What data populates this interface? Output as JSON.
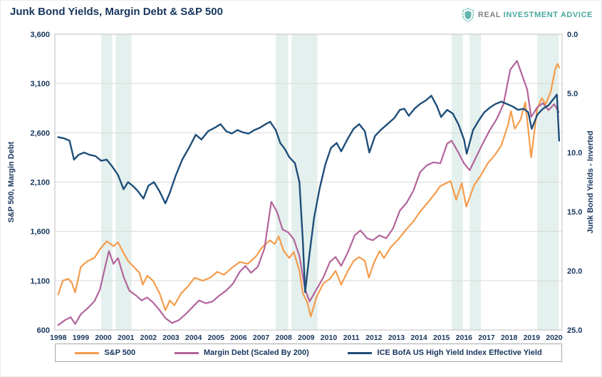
{
  "header": {
    "title": "Junk Bond Yields, Margin Debt & S&P 500",
    "logo": {
      "word1": "REAL",
      "word2": "INVESTMENT",
      "word3": "ADVICE"
    }
  },
  "chart_data": {
    "type": "line",
    "title": "Junk Bond Yields, Margin Debt & S&P 500",
    "x_axis": {
      "min": 1997.85,
      "max": 2020.35,
      "tick_labels": [
        "1998",
        "1999",
        "2000",
        "2001",
        "2002",
        "2003",
        "2004",
        "2005",
        "2006",
        "2007",
        "2008",
        "2009",
        "2010",
        "2011",
        "2012",
        "2013",
        "2014",
        "2015",
        "2016",
        "2017",
        "2018",
        "2019",
        "2020"
      ]
    },
    "left_axis": {
      "label": "S&P 500, Margin Debt",
      "min": 600,
      "max": 3600,
      "step": 500,
      "ticks": [
        "600",
        "1,100",
        "1,600",
        "2,100",
        "2,600",
        "3,100",
        "3,600"
      ]
    },
    "right_axis": {
      "label": "Junk Bond Yields - Inverted",
      "min": 0,
      "max": 25,
      "step": 5,
      "inverted": true,
      "ticks": [
        "0.0",
        "5.0",
        "10.0",
        "15.0",
        "20.0",
        "25.0"
      ]
    },
    "shaded_bands": [
      {
        "from": 1999.9,
        "to": 2000.4
      },
      {
        "from": 2000.55,
        "to": 2001.25
      },
      {
        "from": 2007.65,
        "to": 2008.2
      },
      {
        "from": 2008.35,
        "to": 2009.5
      },
      {
        "from": 2015.45,
        "to": 2015.95
      },
      {
        "from": 2016.25,
        "to": 2016.75
      },
      {
        "from": 2019.25,
        "to": 2020.2
      }
    ],
    "colors": {
      "grid": "#D9D9D9",
      "band": "#E4F0ED",
      "border": "#BFBFBF",
      "axis_text": "#17365D"
    },
    "series": [
      {
        "name": "S&P 500",
        "color": "#F49C4C",
        "axis": "left",
        "points": [
          [
            1998,
            960
          ],
          [
            1998.2,
            1100
          ],
          [
            1998.45,
            1120
          ],
          [
            1998.6,
            1080
          ],
          [
            1998.75,
            980
          ],
          [
            1999,
            1240
          ],
          [
            1999.3,
            1300
          ],
          [
            1999.6,
            1330
          ],
          [
            1999.85,
            1420
          ],
          [
            2000.15,
            1500
          ],
          [
            2000.45,
            1450
          ],
          [
            2000.65,
            1490
          ],
          [
            2000.9,
            1380
          ],
          [
            2001.1,
            1300
          ],
          [
            2001.35,
            1240
          ],
          [
            2001.6,
            1180
          ],
          [
            2001.75,
            1060
          ],
          [
            2001.95,
            1150
          ],
          [
            2002.2,
            1100
          ],
          [
            2002.5,
            970
          ],
          [
            2002.75,
            800
          ],
          [
            2002.95,
            900
          ],
          [
            2003.15,
            850
          ],
          [
            2003.45,
            970
          ],
          [
            2003.75,
            1040
          ],
          [
            2004.05,
            1130
          ],
          [
            2004.4,
            1100
          ],
          [
            2004.75,
            1130
          ],
          [
            2005.05,
            1190
          ],
          [
            2005.35,
            1160
          ],
          [
            2005.7,
            1230
          ],
          [
            2006.05,
            1290
          ],
          [
            2006.4,
            1270
          ],
          [
            2006.75,
            1340
          ],
          [
            2007.05,
            1440
          ],
          [
            2007.4,
            1510
          ],
          [
            2007.6,
            1470
          ],
          [
            2007.78,
            1550
          ],
          [
            2008,
            1400
          ],
          [
            2008.25,
            1330
          ],
          [
            2008.45,
            1390
          ],
          [
            2008.7,
            1200
          ],
          [
            2008.85,
            970
          ],
          [
            2009.05,
            880
          ],
          [
            2009.2,
            735
          ],
          [
            2009.45,
            930
          ],
          [
            2009.75,
            1070
          ],
          [
            2010.05,
            1120
          ],
          [
            2010.3,
            1200
          ],
          [
            2010.55,
            1060
          ],
          [
            2010.85,
            1200
          ],
          [
            2011.1,
            1300
          ],
          [
            2011.35,
            1340
          ],
          [
            2011.6,
            1300
          ],
          [
            2011.78,
            1130
          ],
          [
            2012,
            1280
          ],
          [
            2012.25,
            1400
          ],
          [
            2012.45,
            1330
          ],
          [
            2012.75,
            1440
          ],
          [
            2013.05,
            1510
          ],
          [
            2013.4,
            1610
          ],
          [
            2013.75,
            1700
          ],
          [
            2014.05,
            1800
          ],
          [
            2014.35,
            1880
          ],
          [
            2014.7,
            1980
          ],
          [
            2014.95,
            2060
          ],
          [
            2015.4,
            2110
          ],
          [
            2015.65,
            1920
          ],
          [
            2015.9,
            2090
          ],
          [
            2016.1,
            1850
          ],
          [
            2016.45,
            2070
          ],
          [
            2016.75,
            2170
          ],
          [
            2017.05,
            2290
          ],
          [
            2017.35,
            2370
          ],
          [
            2017.65,
            2470
          ],
          [
            2017.95,
            2680
          ],
          [
            2018.08,
            2820
          ],
          [
            2018.25,
            2640
          ],
          [
            2018.5,
            2730
          ],
          [
            2018.72,
            2910
          ],
          [
            2018.98,
            2350
          ],
          [
            2019.25,
            2850
          ],
          [
            2019.45,
            2950
          ],
          [
            2019.62,
            2890
          ],
          [
            2019.85,
            3020
          ],
          [
            2020.05,
            3250
          ],
          [
            2020.15,
            3300
          ],
          [
            2020.22,
            3260
          ]
        ]
      },
      {
        "name": "Margin Debt (Scaled By 200)",
        "color": "#B2649B",
        "axis": "left",
        "points": [
          [
            1998,
            650
          ],
          [
            1998.3,
            700
          ],
          [
            1998.55,
            730
          ],
          [
            1998.75,
            660
          ],
          [
            1999,
            760
          ],
          [
            1999.3,
            820
          ],
          [
            1999.6,
            890
          ],
          [
            1999.85,
            1010
          ],
          [
            2000.1,
            1260
          ],
          [
            2000.25,
            1400
          ],
          [
            2000.45,
            1270
          ],
          [
            2000.65,
            1330
          ],
          [
            2000.9,
            1140
          ],
          [
            2001.15,
            1000
          ],
          [
            2001.45,
            950
          ],
          [
            2001.7,
            900
          ],
          [
            2001.95,
            930
          ],
          [
            2002.2,
            880
          ],
          [
            2002.5,
            800
          ],
          [
            2002.75,
            720
          ],
          [
            2003.05,
            670
          ],
          [
            2003.35,
            700
          ],
          [
            2003.65,
            760
          ],
          [
            2003.95,
            830
          ],
          [
            2004.25,
            900
          ],
          [
            2004.55,
            870
          ],
          [
            2004.85,
            890
          ],
          [
            2005.15,
            950
          ],
          [
            2005.45,
            1000
          ],
          [
            2005.75,
            1070
          ],
          [
            2006.05,
            1190
          ],
          [
            2006.3,
            1250
          ],
          [
            2006.55,
            1180
          ],
          [
            2006.85,
            1240
          ],
          [
            2007.15,
            1430
          ],
          [
            2007.45,
            1900
          ],
          [
            2007.7,
            1800
          ],
          [
            2007.95,
            1620
          ],
          [
            2008.2,
            1590
          ],
          [
            2008.45,
            1520
          ],
          [
            2008.7,
            1350
          ],
          [
            2008.95,
            1010
          ],
          [
            2009.15,
            890
          ],
          [
            2009.45,
            1010
          ],
          [
            2009.75,
            1130
          ],
          [
            2010.05,
            1290
          ],
          [
            2010.3,
            1340
          ],
          [
            2010.55,
            1250
          ],
          [
            2010.85,
            1390
          ],
          [
            2011.15,
            1560
          ],
          [
            2011.4,
            1610
          ],
          [
            2011.7,
            1530
          ],
          [
            2011.95,
            1510
          ],
          [
            2012.25,
            1560
          ],
          [
            2012.55,
            1530
          ],
          [
            2012.85,
            1630
          ],
          [
            2013.15,
            1810
          ],
          [
            2013.45,
            1890
          ],
          [
            2013.75,
            2010
          ],
          [
            2014.05,
            2200
          ],
          [
            2014.35,
            2270
          ],
          [
            2014.65,
            2300
          ],
          [
            2014.95,
            2290
          ],
          [
            2015.25,
            2490
          ],
          [
            2015.45,
            2520
          ],
          [
            2015.75,
            2400
          ],
          [
            2016,
            2290
          ],
          [
            2016.25,
            2220
          ],
          [
            2016.55,
            2360
          ],
          [
            2016.85,
            2500
          ],
          [
            2017.15,
            2630
          ],
          [
            2017.45,
            2740
          ],
          [
            2017.75,
            2890
          ],
          [
            2018.05,
            3240
          ],
          [
            2018.35,
            3330
          ],
          [
            2018.6,
            3170
          ],
          [
            2018.8,
            3040
          ],
          [
            2018.98,
            2760
          ],
          [
            2019.25,
            2860
          ],
          [
            2019.5,
            2900
          ],
          [
            2019.75,
            2830
          ],
          [
            2020,
            2890
          ],
          [
            2020.2,
            2810
          ]
        ]
      },
      {
        "name": "ICE BofA US High Yield Index Effective Yield",
        "color": "#1F4E79",
        "axis": "right",
        "points": [
          [
            1998,
            8.7
          ],
          [
            1998.25,
            8.8
          ],
          [
            1998.5,
            9.0
          ],
          [
            1998.7,
            10.6
          ],
          [
            1998.9,
            10.2
          ],
          [
            1999.15,
            10.0
          ],
          [
            1999.4,
            10.2
          ],
          [
            1999.65,
            10.3
          ],
          [
            1999.9,
            10.7
          ],
          [
            2000.15,
            10.6
          ],
          [
            2000.4,
            11.2
          ],
          [
            2000.65,
            11.9
          ],
          [
            2000.9,
            13.1
          ],
          [
            2001.1,
            12.5
          ],
          [
            2001.35,
            12.9
          ],
          [
            2001.55,
            13.3
          ],
          [
            2001.78,
            13.9
          ],
          [
            2002,
            12.8
          ],
          [
            2002.25,
            12.5
          ],
          [
            2002.5,
            13.3
          ],
          [
            2002.75,
            14.3
          ],
          [
            2002.95,
            13.4
          ],
          [
            2003.2,
            12.0
          ],
          [
            2003.5,
            10.6
          ],
          [
            2003.8,
            9.6
          ],
          [
            2004.1,
            8.5
          ],
          [
            2004.35,
            8.9
          ],
          [
            2004.65,
            8.2
          ],
          [
            2004.95,
            7.9
          ],
          [
            2005.2,
            7.6
          ],
          [
            2005.45,
            8.2
          ],
          [
            2005.7,
            8.4
          ],
          [
            2005.95,
            8.1
          ],
          [
            2006.2,
            8.3
          ],
          [
            2006.45,
            8.4
          ],
          [
            2006.7,
            8.1
          ],
          [
            2006.95,
            7.9
          ],
          [
            2007.2,
            7.6
          ],
          [
            2007.4,
            7.4
          ],
          [
            2007.65,
            8.1
          ],
          [
            2007.85,
            9.2
          ],
          [
            2008.05,
            9.7
          ],
          [
            2008.25,
            10.4
          ],
          [
            2008.5,
            10.9
          ],
          [
            2008.7,
            12.5
          ],
          [
            2008.85,
            17.5
          ],
          [
            2008.95,
            21.8
          ],
          [
            2009.15,
            18.5
          ],
          [
            2009.35,
            15.5
          ],
          [
            2009.6,
            13.0
          ],
          [
            2009.85,
            11.0
          ],
          [
            2010.1,
            9.6
          ],
          [
            2010.35,
            9.2
          ],
          [
            2010.55,
            9.9
          ],
          [
            2010.85,
            8.8
          ],
          [
            2011.1,
            8.0
          ],
          [
            2011.35,
            7.6
          ],
          [
            2011.6,
            8.2
          ],
          [
            2011.8,
            10.0
          ],
          [
            2012.05,
            8.6
          ],
          [
            2012.3,
            8.1
          ],
          [
            2012.6,
            7.6
          ],
          [
            2012.9,
            7.1
          ],
          [
            2013.15,
            6.4
          ],
          [
            2013.35,
            6.3
          ],
          [
            2013.55,
            6.9
          ],
          [
            2013.8,
            6.3
          ],
          [
            2014.05,
            5.9
          ],
          [
            2014.3,
            5.6
          ],
          [
            2014.55,
            5.2
          ],
          [
            2014.8,
            6.1
          ],
          [
            2014.98,
            7.0
          ],
          [
            2015.25,
            6.4
          ],
          [
            2015.5,
            6.7
          ],
          [
            2015.75,
            7.6
          ],
          [
            2016,
            8.9
          ],
          [
            2016.12,
            10.1
          ],
          [
            2016.4,
            8.1
          ],
          [
            2016.65,
            7.3
          ],
          [
            2016.9,
            6.6
          ],
          [
            2017.15,
            6.2
          ],
          [
            2017.4,
            5.9
          ],
          [
            2017.65,
            5.7
          ],
          [
            2017.9,
            5.9
          ],
          [
            2018.15,
            6.1
          ],
          [
            2018.4,
            6.4
          ],
          [
            2018.65,
            6.3
          ],
          [
            2018.85,
            6.6
          ],
          [
            2019,
            8.0
          ],
          [
            2019.25,
            6.8
          ],
          [
            2019.5,
            6.3
          ],
          [
            2019.75,
            6.0
          ],
          [
            2020,
            5.4
          ],
          [
            2020.12,
            5.1
          ],
          [
            2020.22,
            9.0
          ]
        ]
      }
    ],
    "legend_position": "bottom"
  }
}
